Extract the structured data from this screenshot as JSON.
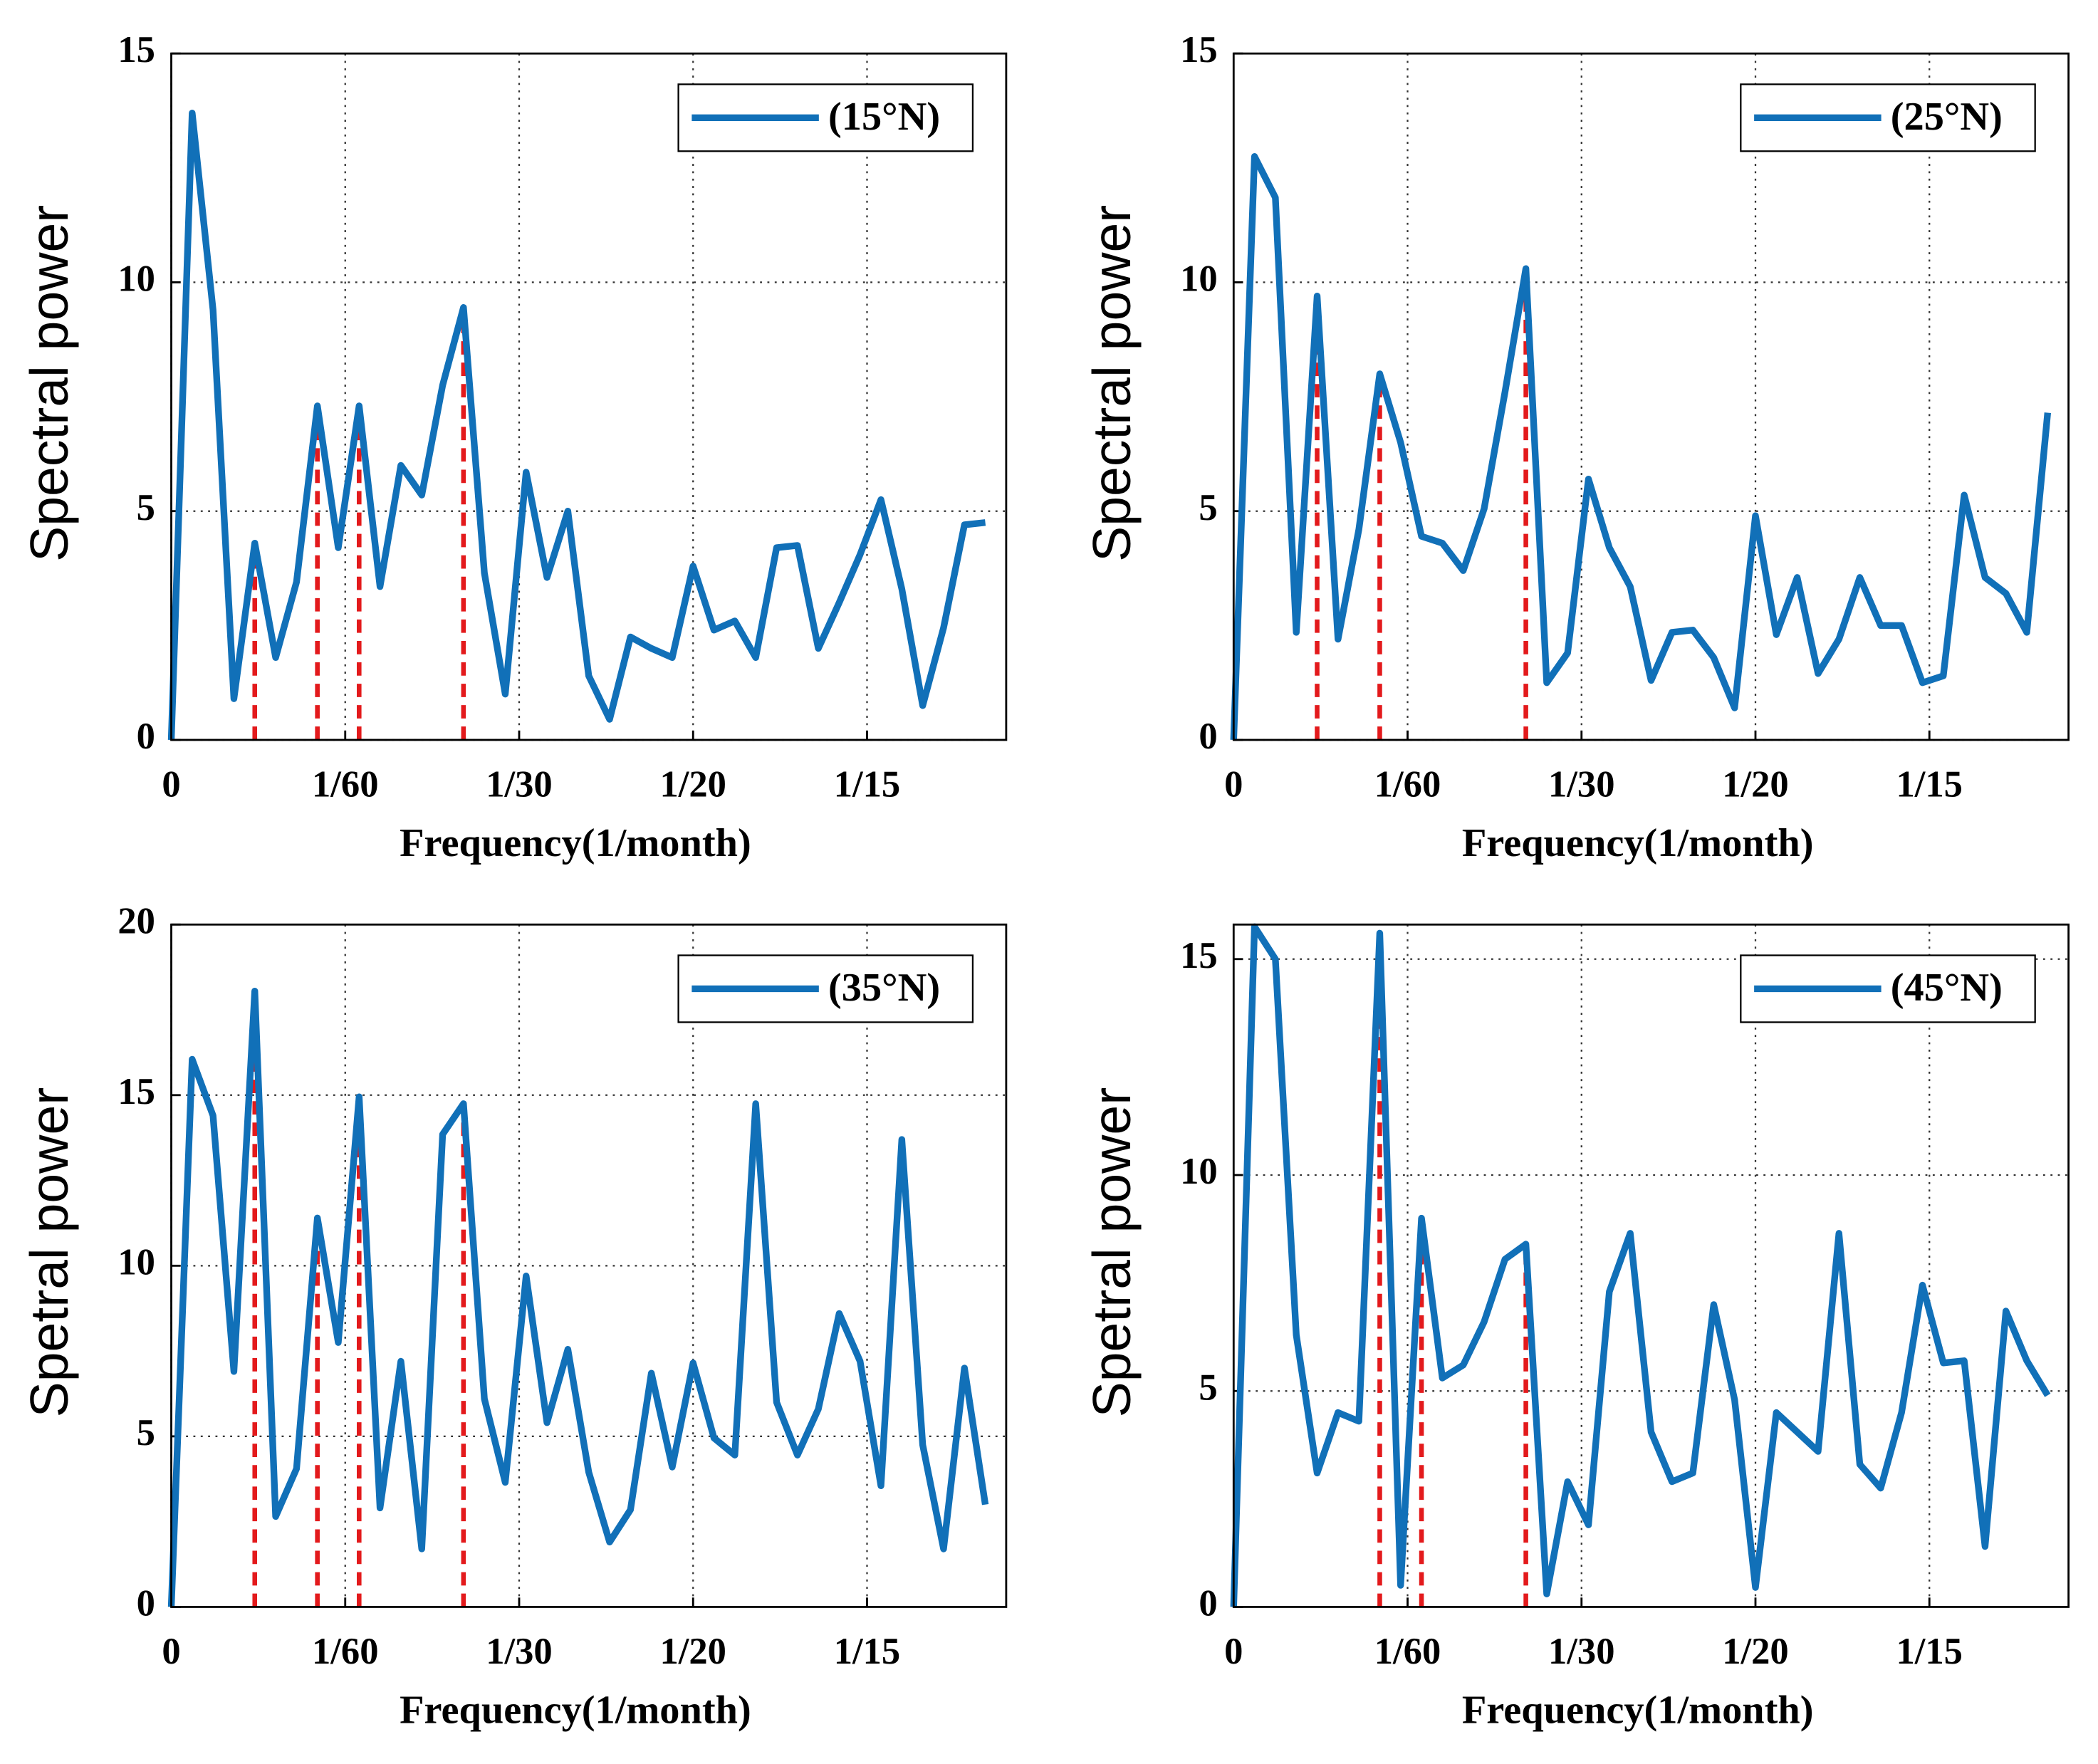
{
  "chart_data": [
    {
      "type": "line",
      "xlabel": "Frequency(1/month)",
      "ylabel": "Spectral power",
      "x": [
        0,
        0.002,
        0.004,
        0.006,
        0.008,
        0.01,
        0.012,
        0.014,
        0.016,
        0.018,
        0.02,
        0.022,
        0.024,
        0.026,
        0.028,
        0.03,
        0.032,
        0.034,
        0.036,
        0.038,
        0.04,
        0.042,
        0.044,
        0.046,
        0.048,
        0.05,
        0.052,
        0.054,
        0.056,
        0.058,
        0.06,
        0.062,
        0.064,
        0.066,
        0.068,
        0.07,
        0.072,
        0.074,
        0.076,
        0.078
      ],
      "series": [
        {
          "name": "(15°N)",
          "color": "#1170b8",
          "values": [
            0,
            13.7,
            9.4,
            0.9,
            4.3,
            1.8,
            3.45,
            7.3,
            4.2,
            7.3,
            3.35,
            6.0,
            5.35,
            7.75,
            9.45,
            3.65,
            1.0,
            5.85,
            3.55,
            5.0,
            1.4,
            0.45,
            2.25,
            2.0,
            1.8,
            3.8,
            2.4,
            2.6,
            1.8,
            4.2,
            4.25,
            2.0,
            3.0,
            4.05,
            5.25,
            3.3,
            0.75,
            2.45,
            4.7,
            4.75
          ]
        }
      ],
      "peaks": {
        "color": "#e31a1c",
        "x": [
          0.008,
          0.014,
          0.018,
          0.028
        ],
        "values": [
          4.3,
          7.3,
          7.3,
          9.45
        ]
      },
      "xlim": [
        0,
        0.08
      ],
      "ylim": [
        0,
        15
      ],
      "xticks": [
        0,
        {
          "value": 0.0166667,
          "label": "1/60"
        },
        {
          "value": 0.0333333,
          "label": "1/30"
        },
        {
          "value": 0.05,
          "label": "1/20"
        },
        {
          "value": 0.0666667,
          "label": "1/15"
        }
      ],
      "yticks": [
        0,
        5,
        10,
        15
      ],
      "grid": true,
      "legend": "upper right"
    },
    {
      "type": "line",
      "xlabel": "Frequency(1/month)",
      "ylabel": "Spectral power",
      "x": [
        0,
        0.002,
        0.004,
        0.006,
        0.008,
        0.01,
        0.012,
        0.014,
        0.016,
        0.018,
        0.02,
        0.022,
        0.024,
        0.026,
        0.028,
        0.03,
        0.032,
        0.034,
        0.036,
        0.038,
        0.04,
        0.042,
        0.044,
        0.046,
        0.048,
        0.05,
        0.052,
        0.054,
        0.056,
        0.058,
        0.06,
        0.062,
        0.064,
        0.066,
        0.068,
        0.07,
        0.072,
        0.074,
        0.076,
        0.078
      ],
      "series": [
        {
          "name": "(25°N)",
          "color": "#1170b8",
          "values": [
            0,
            12.75,
            11.85,
            2.35,
            9.7,
            2.2,
            4.6,
            8.0,
            6.5,
            4.45,
            4.3,
            3.7,
            5.05,
            7.6,
            10.3,
            1.25,
            1.9,
            5.7,
            4.2,
            3.35,
            1.3,
            2.35,
            2.4,
            1.8,
            0.7,
            4.9,
            2.3,
            3.55,
            1.45,
            2.2,
            3.55,
            2.5,
            2.5,
            1.25,
            1.4,
            5.35,
            3.55,
            3.2,
            2.35,
            7.15
          ]
        }
      ],
      "peaks": {
        "color": "#e31a1c",
        "x": [
          0.008,
          0.014,
          0.028
        ],
        "values": [
          9.7,
          8.0,
          10.3
        ]
      },
      "xlim": [
        0,
        0.08
      ],
      "ylim": [
        0,
        15
      ],
      "xticks": [
        0,
        {
          "value": 0.0166667,
          "label": "1/60"
        },
        {
          "value": 0.0333333,
          "label": "1/30"
        },
        {
          "value": 0.05,
          "label": "1/20"
        },
        {
          "value": 0.0666667,
          "label": "1/15"
        }
      ],
      "yticks": [
        0,
        5,
        10,
        15
      ],
      "grid": true,
      "legend": "upper right"
    },
    {
      "type": "line",
      "xlabel": "Frequency(1/month)",
      "ylabel": "Spetral power",
      "x": [
        0,
        0.002,
        0.004,
        0.006,
        0.008,
        0.01,
        0.012,
        0.014,
        0.016,
        0.018,
        0.02,
        0.022,
        0.024,
        0.026,
        0.028,
        0.03,
        0.032,
        0.034,
        0.036,
        0.038,
        0.04,
        0.042,
        0.044,
        0.046,
        0.048,
        0.05,
        0.052,
        0.054,
        0.056,
        0.058,
        0.06,
        0.062,
        0.064,
        0.066,
        0.068,
        0.07,
        0.072,
        0.074,
        0.076,
        0.078
      ],
      "series": [
        {
          "name": "(35°N)",
          "color": "#1170b8",
          "values": [
            0,
            16.05,
            14.4,
            6.9,
            18.05,
            2.65,
            4.05,
            11.4,
            7.75,
            14.95,
            2.9,
            7.2,
            1.7,
            13.85,
            14.75,
            6.1,
            3.65,
            9.7,
            5.4,
            7.55,
            3.95,
            1.9,
            2.85,
            6.85,
            4.1,
            7.15,
            4.95,
            4.45,
            14.75,
            6.0,
            4.45,
            5.8,
            8.6,
            7.2,
            3.55,
            13.7,
            4.75,
            1.7,
            7.0,
            3.0
          ]
        }
      ],
      "peaks": {
        "color": "#e31a1c",
        "x": [
          0.008,
          0.014,
          0.018,
          0.028
        ],
        "values": [
          18.05,
          11.4,
          14.95,
          14.75
        ]
      },
      "xlim": [
        0,
        0.08
      ],
      "ylim": [
        0,
        20
      ],
      "xticks": [
        0,
        {
          "value": 0.0166667,
          "label": "1/60"
        },
        {
          "value": 0.0333333,
          "label": "1/30"
        },
        {
          "value": 0.05,
          "label": "1/20"
        },
        {
          "value": 0.0666667,
          "label": "1/15"
        }
      ],
      "yticks": [
        0,
        5,
        10,
        15,
        20
      ],
      "grid": true,
      "legend": "upper right"
    },
    {
      "type": "line",
      "xlabel": "Frequency(1/month)",
      "ylabel": "Spetral power",
      "x": [
        0,
        0.002,
        0.004,
        0.006,
        0.008,
        0.01,
        0.012,
        0.014,
        0.016,
        0.018,
        0.02,
        0.022,
        0.024,
        0.026,
        0.028,
        0.03,
        0.032,
        0.034,
        0.036,
        0.038,
        0.04,
        0.042,
        0.044,
        0.046,
        0.048,
        0.05,
        0.052,
        0.054,
        0.056,
        0.058,
        0.06,
        0.062,
        0.064,
        0.066,
        0.068,
        0.07,
        0.072,
        0.074,
        0.076,
        0.078
      ],
      "series": [
        {
          "name": "(45°N)",
          "color": "#1170b8",
          "values": [
            0,
            15.75,
            15.0,
            6.3,
            3.1,
            4.5,
            4.3,
            15.6,
            0.5,
            9.0,
            5.3,
            5.6,
            6.6,
            8.05,
            8.4,
            0.3,
            2.9,
            1.9,
            7.3,
            8.65,
            4.05,
            2.9,
            3.1,
            7.0,
            4.8,
            0.45,
            4.5,
            4.05,
            3.6,
            8.65,
            3.3,
            2.75,
            4.5,
            7.45,
            5.65,
            5.7,
            1.4,
            6.85,
            5.7,
            4.9
          ]
        }
      ],
      "peaks": {
        "color": "#e31a1c",
        "x": [
          0.014,
          0.018,
          0.028
        ],
        "values": [
          15.6,
          9.0,
          8.4
        ]
      },
      "xlim": [
        0,
        0.08
      ],
      "ylim": [
        0,
        15.8
      ],
      "xticks": [
        0,
        {
          "value": 0.0166667,
          "label": "1/60"
        },
        {
          "value": 0.0333333,
          "label": "1/30"
        },
        {
          "value": 0.05,
          "label": "1/20"
        },
        {
          "value": 0.0666667,
          "label": "1/15"
        }
      ],
      "yticks": [
        0,
        5,
        10,
        15
      ],
      "grid": true,
      "legend": "upper right"
    }
  ]
}
